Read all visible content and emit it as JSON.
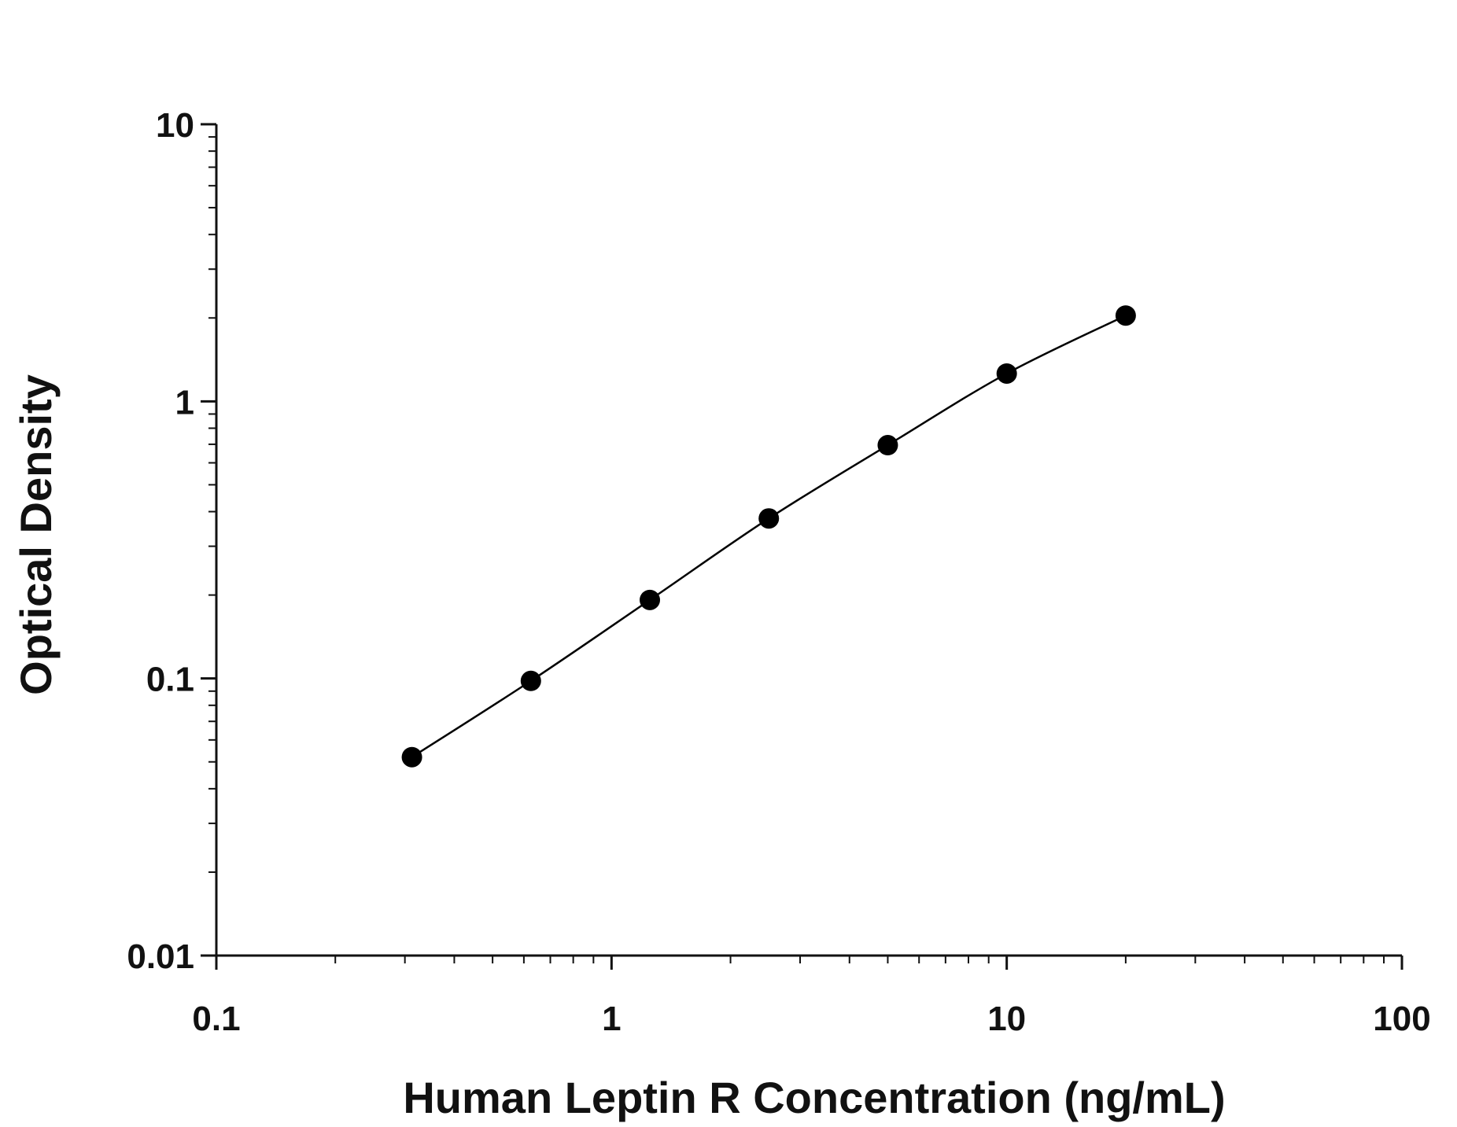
{
  "chart_data": {
    "type": "scatter",
    "title": "",
    "xlabel": "Human Leptin R Concentration (ng/mL)",
    "ylabel": "Optical Density",
    "x_scale": "log",
    "y_scale": "log",
    "xlim": [
      0.1,
      100
    ],
    "ylim": [
      0.01,
      10
    ],
    "x_ticks": [
      "0.1",
      "1",
      "10",
      "100"
    ],
    "y_ticks": [
      "0.01",
      "0.1",
      "1",
      "10"
    ],
    "grid": false,
    "legend": "none",
    "colors": {
      "axis": "#111111",
      "points": "#000000",
      "curve": "#000000"
    },
    "series": [
      {
        "x": [
          0.3125,
          0.625,
          1.25,
          2.5,
          5,
          10,
          20
        ],
        "y": [
          0.052,
          0.098,
          0.192,
          0.378,
          0.695,
          1.26,
          2.04
        ],
        "fit_line": true
      }
    ]
  }
}
